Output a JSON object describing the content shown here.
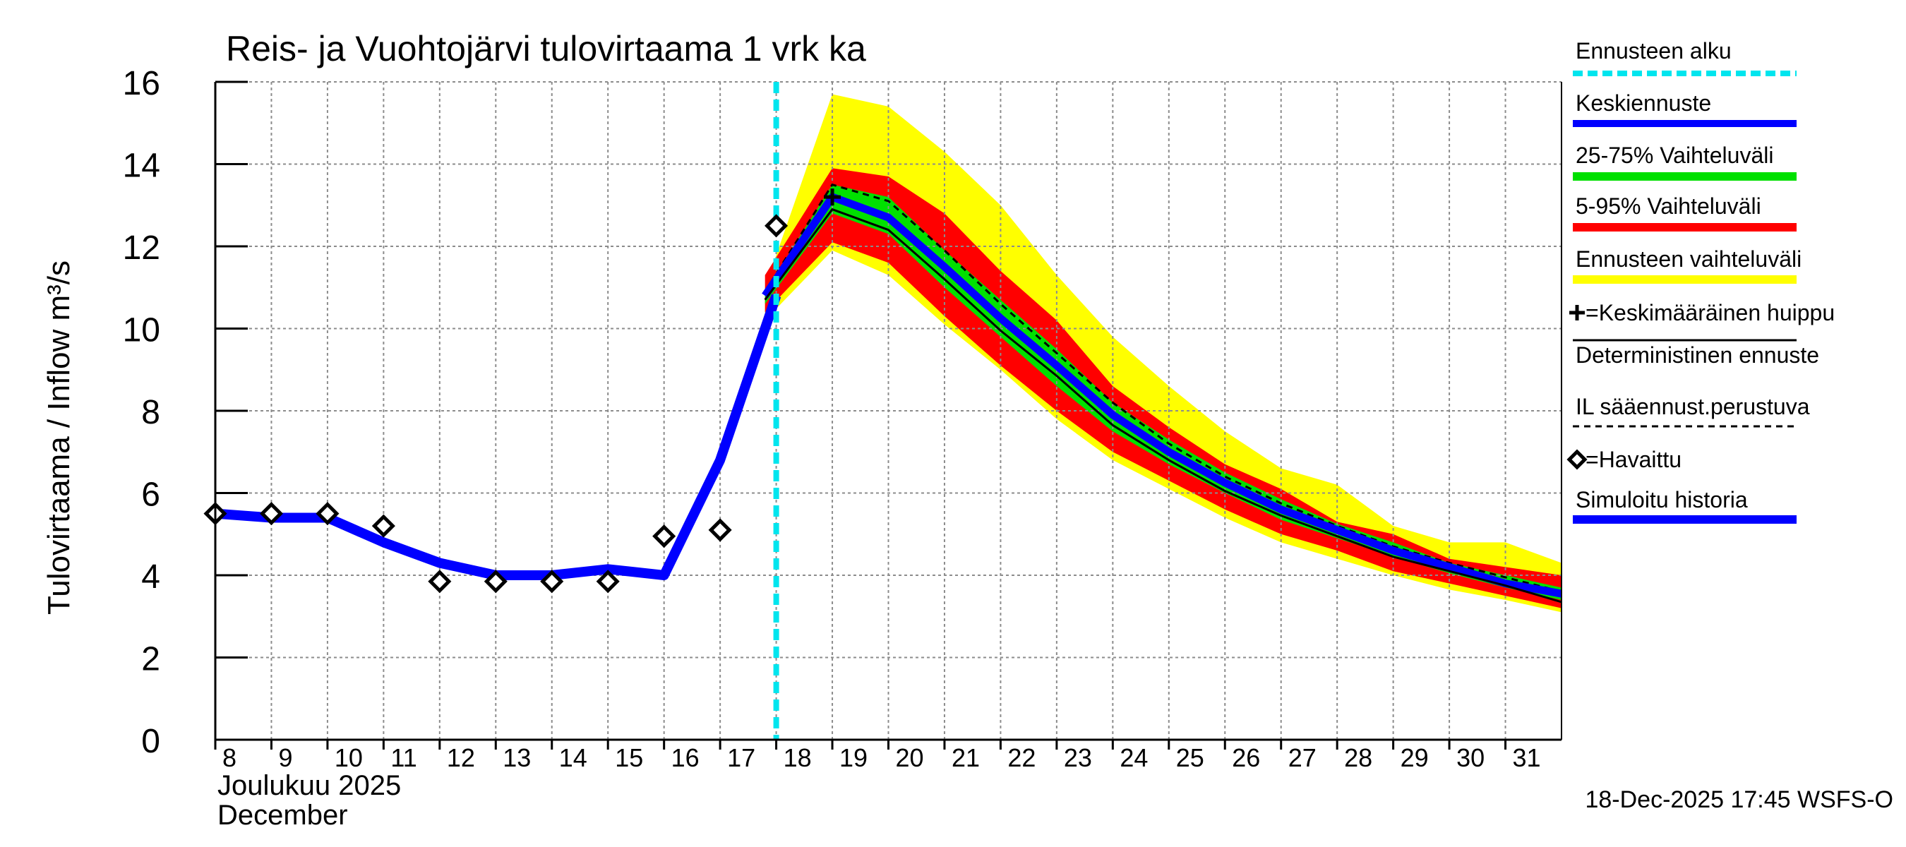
{
  "chart_data": {
    "type": "area",
    "title": "Reis- ja Vuohtojärvi tulovirtaama 1 vrk ka",
    "ylabel": "Tulovirtaama / Inflow    m³/s",
    "xlabel_line1": "Joulukuu  2025",
    "xlabel_line2": "December",
    "timestamp": "18-Dec-2025 17:45 WSFS-O",
    "ylim": [
      0,
      16
    ],
    "xlim": [
      8,
      32
    ],
    "yticks": [
      "0",
      "2",
      "4",
      "6",
      "8",
      "10",
      "12",
      "14",
      "16"
    ],
    "xticks": [
      "8",
      "9",
      "10",
      "11",
      "12",
      "13",
      "14",
      "15",
      "16",
      "17",
      "18",
      "19",
      "20",
      "21",
      "22",
      "23",
      "24",
      "25",
      "26",
      "27",
      "28",
      "29",
      "30",
      "31"
    ],
    "forecast_start": 18,
    "colors": {
      "yellow": "#ffff00",
      "red": "#ff0000",
      "green": "#00e000",
      "blue": "#0000ff",
      "cyan": "#00e5ee",
      "black": "#000000",
      "grid": "#8c8c8c"
    },
    "simulated_history": {
      "x": [
        8,
        9,
        10,
        11,
        12,
        13,
        14,
        15,
        16,
        17,
        18
      ],
      "y": [
        5.5,
        5.4,
        5.4,
        4.8,
        4.3,
        4.0,
        4.0,
        4.15,
        4.0,
        6.8,
        10.8
      ]
    },
    "observed": {
      "x": [
        8,
        9,
        10,
        11,
        12,
        13,
        14,
        15,
        16,
        17,
        18
      ],
      "y": [
        5.5,
        5.5,
        5.5,
        5.2,
        3.85,
        3.85,
        3.85,
        3.85,
        4.95,
        5.1,
        12.5
      ]
    },
    "forecast_x": [
      17.8,
      19,
      20,
      21,
      22,
      23,
      24,
      25,
      26,
      27,
      28,
      29,
      30,
      31,
      32
    ],
    "band_full_low": [
      10.2,
      11.9,
      11.3,
      10.1,
      9.0,
      7.8,
      6.8,
      6.1,
      5.4,
      4.8,
      4.4,
      4.0,
      3.65,
      3.4,
      3.1
    ],
    "band_full_high": [
      11.0,
      15.7,
      15.4,
      14.3,
      13.0,
      11.3,
      9.8,
      8.6,
      7.5,
      6.6,
      6.2,
      5.2,
      4.8,
      4.8,
      4.3
    ],
    "band_5_95_low": [
      10.4,
      12.1,
      11.6,
      10.3,
      9.1,
      8.0,
      7.0,
      6.3,
      5.6,
      5.0,
      4.6,
      4.1,
      3.8,
      3.5,
      3.2
    ],
    "band_5_95_high": [
      11.3,
      13.9,
      13.7,
      12.8,
      11.4,
      10.2,
      8.6,
      7.6,
      6.7,
      6.1,
      5.3,
      5.0,
      4.4,
      4.2,
      4.0
    ],
    "band_25_75_low": [
      10.6,
      12.8,
      12.3,
      11.0,
      9.8,
      8.6,
      7.5,
      6.7,
      6.0,
      5.35,
      4.9,
      4.45,
      4.05,
      3.7,
      3.4
    ],
    "band_25_75_high": [
      10.9,
      13.5,
      13.2,
      11.9,
      10.7,
      9.5,
      8.2,
      7.3,
      6.5,
      5.85,
      5.25,
      4.8,
      4.3,
      4.0,
      3.7
    ],
    "mean_forecast": [
      10.8,
      13.2,
      12.7,
      11.5,
      10.25,
      9.1,
      7.9,
      7.0,
      6.25,
      5.6,
      5.1,
      4.6,
      4.2,
      3.8,
      3.55
    ],
    "deterministic": [
      10.7,
      12.9,
      12.4,
      11.2,
      9.95,
      8.85,
      7.65,
      6.8,
      6.05,
      5.45,
      4.95,
      4.45,
      4.1,
      3.75,
      3.35
    ],
    "il_forecast": [
      10.9,
      13.5,
      13.1,
      11.9,
      10.6,
      9.4,
      8.2,
      7.2,
      6.4,
      5.75,
      5.2,
      4.7,
      4.3,
      3.95,
      3.6
    ],
    "mean_peak": {
      "x": 19,
      "y": 13.2
    },
    "legend": [
      {
        "key": "forecast_start",
        "label": "Ennusteen alku"
      },
      {
        "key": "mean",
        "label": "Keskiennuste"
      },
      {
        "key": "q25_75",
        "label": "25-75% Vaihteluväli"
      },
      {
        "key": "q5_95",
        "label": "5-95% Vaihteluväli"
      },
      {
        "key": "range",
        "label": "Ennusteen vaihteluväli"
      },
      {
        "key": "peak",
        "label": "=Keskimääräinen huippu"
      },
      {
        "key": "deterministic",
        "label": "Deterministinen ennuste"
      },
      {
        "key": "il",
        "label": "IL sääennust.perustuva"
      },
      {
        "key": "observed",
        "label": "=Havaittu"
      },
      {
        "key": "simulated",
        "label": "Simuloitu historia"
      }
    ]
  }
}
